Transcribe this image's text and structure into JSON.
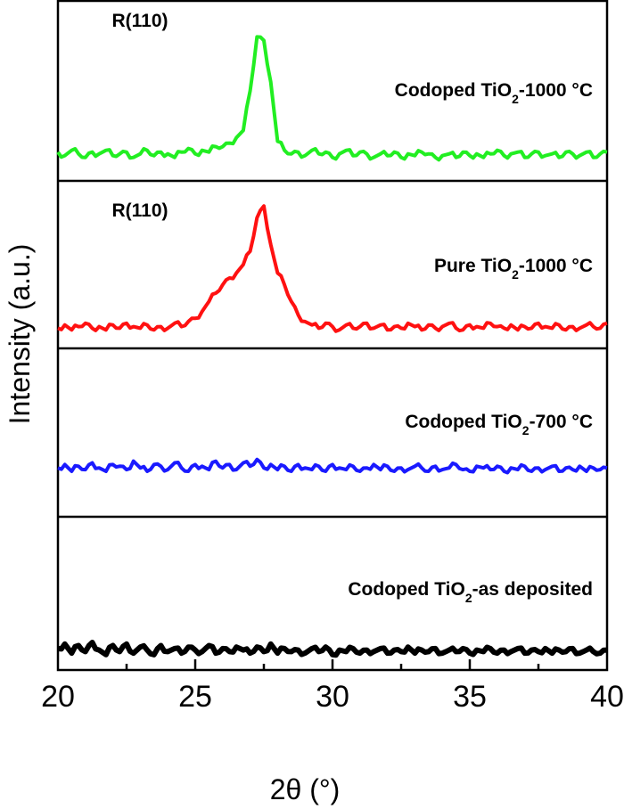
{
  "chart_data": {
    "type": "line",
    "layout": "stacked panels",
    "xlabel": "2θ (°)",
    "ylabel": "Intensity (a.u.)",
    "xlim": [
      20,
      40
    ],
    "xticks": [
      "20",
      "25",
      "30",
      "35",
      "40"
    ],
    "x_start": 20,
    "x_step": 0.25,
    "grid": false,
    "series": [
      {
        "name": {
          "pre": "Codoped TiO",
          "sub": "2",
          "post": "-1000 °C"
        },
        "color": "#22ee22",
        "annotation": "R(110)",
        "values": [
          16,
          14,
          17,
          15,
          13,
          16,
          15,
          17,
          14,
          15,
          16,
          13,
          15,
          17,
          14,
          16,
          15,
          13,
          16,
          18,
          15,
          17,
          16,
          19,
          19,
          21,
          24,
          28,
          50,
          80,
          78,
          55,
          22,
          17,
          15,
          16,
          14,
          17,
          15,
          16,
          13,
          15,
          17,
          14,
          16,
          15,
          13,
          15,
          14,
          16,
          13,
          15,
          14,
          16,
          15,
          13,
          14,
          15,
          13,
          16,
          14,
          15,
          13,
          15,
          17,
          14,
          15,
          16,
          13,
          15,
          16,
          14,
          15,
          13,
          16,
          15,
          14,
          16,
          13,
          15,
          16
        ]
      },
      {
        "name": {
          "pre": "Pure TiO",
          "sub": "2",
          "post": "-1000 °C"
        },
        "color": "#ff1111",
        "annotation": "R(110)",
        "values": [
          12,
          14,
          11,
          13,
          15,
          12,
          13,
          11,
          14,
          12,
          15,
          13,
          12,
          14,
          11,
          13,
          12,
          15,
          13,
          16,
          18,
          22,
          28,
          33,
          38,
          42,
          45,
          50,
          58,
          78,
          85,
          62,
          45,
          38,
          28,
          20,
          16,
          14,
          12,
          15,
          13,
          11,
          14,
          12,
          13,
          15,
          12,
          14,
          11,
          13,
          12,
          15,
          13,
          11,
          14,
          12,
          13,
          15,
          12,
          11,
          14,
          13,
          12,
          15,
          13,
          12,
          14,
          11,
          13,
          12,
          15,
          13,
          12,
          14,
          11,
          13,
          12,
          14,
          13,
          12,
          15
        ]
      },
      {
        "name": {
          "pre": "Codoped TiO",
          "sub": "2",
          "post": "-700 °C"
        },
        "color": "#1a1aff",
        "annotation": "",
        "values": [
          29,
          31,
          27,
          30,
          28,
          32,
          29,
          27,
          31,
          30,
          28,
          33,
          29,
          27,
          31,
          30,
          28,
          32,
          29,
          27,
          31,
          30,
          28,
          33,
          29,
          31,
          28,
          32,
          30,
          34,
          29,
          31,
          28,
          30,
          27,
          31,
          29,
          28,
          30,
          27,
          31,
          29,
          28,
          30,
          27,
          29,
          31,
          28,
          30,
          27,
          29,
          28,
          30,
          29,
          27,
          30,
          28,
          29,
          31,
          28,
          27,
          30,
          29,
          28,
          30,
          27,
          29,
          28,
          30,
          27,
          29,
          28,
          30,
          27,
          29,
          28,
          30,
          27,
          29,
          28,
          29
        ]
      },
      {
        "name": {
          "pre": "Codoped TiO",
          "sub": "2",
          "post": "-as deposited"
        },
        "color": "#000000",
        "annotation": "",
        "values": [
          14,
          17,
          11,
          16,
          12,
          18,
          13,
          10,
          16,
          12,
          17,
          11,
          15,
          13,
          10,
          16,
          12,
          14,
          11,
          15,
          13,
          12,
          16,
          11,
          14,
          12,
          15,
          13,
          11,
          15,
          12,
          17,
          11,
          14,
          12,
          13,
          11,
          14,
          12,
          15,
          10,
          13,
          12,
          14,
          11,
          13,
          12,
          14,
          11,
          13,
          12,
          15,
          11,
          13,
          12,
          14,
          11,
          13,
          12,
          14,
          11,
          13,
          12,
          14,
          11,
          13,
          12,
          14,
          11,
          13,
          12,
          14,
          11,
          13,
          12,
          14,
          11,
          13,
          12,
          11,
          13
        ]
      }
    ]
  }
}
